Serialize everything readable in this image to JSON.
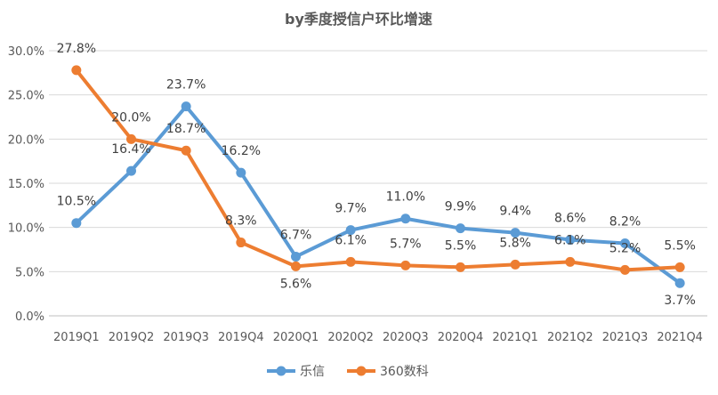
{
  "chart_data": {
    "type": "line",
    "title": "by季度授信户环比增速",
    "xlabel": "",
    "ylabel": "",
    "categories": [
      "2019Q1",
      "2019Q2",
      "2019Q3",
      "2019Q4",
      "2020Q1",
      "2020Q2",
      "2020Q3",
      "2020Q4",
      "2021Q1",
      "2021Q2",
      "2021Q3",
      "2021Q4"
    ],
    "yticks": [
      "0.0%",
      "5.0%",
      "10.0%",
      "15.0%",
      "20.0%",
      "25.0%",
      "30.0%"
    ],
    "ylim": [
      0,
      30
    ],
    "grid": true,
    "legend_position": "bottom",
    "series": [
      {
        "name": "乐信",
        "color": "#5B9BD5",
        "values": [
          10.5,
          16.4,
          23.7,
          16.2,
          6.7,
          9.7,
          11.0,
          9.9,
          9.4,
          8.6,
          8.2,
          3.7
        ]
      },
      {
        "name": "360数科",
        "color": "#ED7D31",
        "values": [
          27.8,
          20.0,
          18.7,
          8.3,
          5.6,
          6.1,
          5.7,
          5.5,
          5.8,
          6.1,
          5.2,
          5.5
        ]
      }
    ]
  }
}
